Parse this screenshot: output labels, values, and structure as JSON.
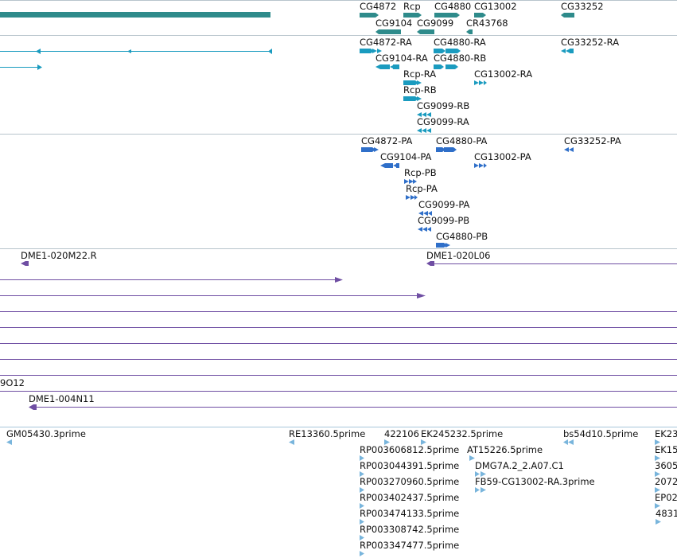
{
  "colors": {
    "gene": "#2e8b8b",
    "mrna": "#1a9bbf",
    "protein": "#2f6fc9",
    "clone": "#6f4ea3",
    "est": "#79b5dc",
    "separator": "#b8c4cc"
  },
  "gene_track": {
    "labels": [
      "CG4872",
      "Rcp",
      "CG4880",
      "CG13002",
      "CG33252",
      "CG9104",
      "CG9099",
      "CR43768"
    ]
  },
  "mrna_track": {
    "labels": [
      "CG4872-RA",
      "CG4880-RA",
      "CG33252-RA",
      "CG9104-RA",
      "CG4880-RB",
      "Rcp-RA",
      "CG13002-RA",
      "Rcp-RB",
      "CG9099-RB",
      "CG9099-RA"
    ]
  },
  "protein_track": {
    "labels": [
      "CG4872-PA",
      "CG4880-PA",
      "CG33252-PA",
      "CG9104-PA",
      "CG13002-PA",
      "Rcp-PB",
      "Rcp-PA",
      "CG9099-PA",
      "CG9099-PB",
      "CG4880-PB"
    ]
  },
  "clone_track": {
    "labels": [
      "DME1-020M22.R",
      "DME1-020L06",
      "9O12",
      "DME1-004N11"
    ]
  },
  "est_track": {
    "labels": [
      "GM05430.3prime",
      "RE13360.5prime",
      "422106",
      "EK245232.5prime",
      "bs54d10.5prime",
      "EK23",
      "RP003606812.5prime",
      "AT15226.5prime",
      "EK15",
      "RP003044391.5prime",
      "DMG7A.2_2.A07.C1",
      "3605",
      "RP003270960.5prime",
      "FB59-CG13002-RA.3prime",
      "2072",
      "RP003402437.5prime",
      "EP02",
      "RP003474133.5prime",
      "4831",
      "RP003308742.5prime",
      "RP003347477.5prime"
    ]
  }
}
